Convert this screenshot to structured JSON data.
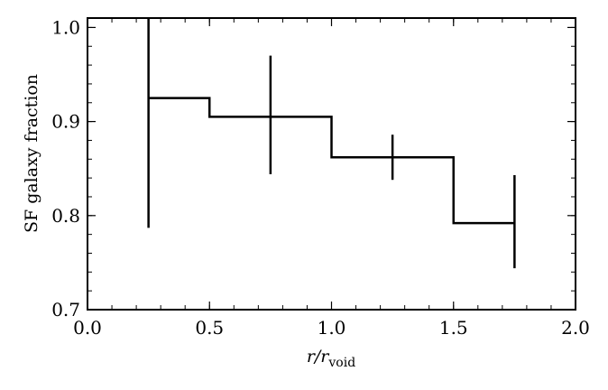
{
  "chart_data": {
    "type": "line",
    "title": "",
    "xlabel_main": "r/r",
    "xlabel_sub": "void",
    "ylabel": "SF galaxy fraction",
    "xlim": [
      0.0,
      2.0
    ],
    "ylim": [
      0.7,
      1.01
    ],
    "x_ticks": [
      "0.0",
      "0.5",
      "1.0",
      "1.5",
      "2.0"
    ],
    "y_ticks": [
      "0.7",
      "0.8",
      "0.9",
      "1.0"
    ],
    "grid": false,
    "series": [
      {
        "style": "step histogram with error bars",
        "bin_edges": [
          0.25,
          0.5,
          1.0,
          1.5,
          1.75
        ],
        "bin_values": [
          0.925,
          0.905,
          0.862,
          0.792
        ],
        "points": [
          {
            "x": 0.25,
            "y": 0.925,
            "y_lo": 0.787,
            "y_hi": 1.01
          },
          {
            "x": 0.75,
            "y": 0.905,
            "y_lo": 0.844,
            "y_hi": 0.97
          },
          {
            "x": 1.25,
            "y": 0.862,
            "y_lo": 0.838,
            "y_hi": 0.886
          },
          {
            "x": 1.75,
            "y": 0.792,
            "y_lo": 0.744,
            "y_hi": 0.843
          }
        ]
      }
    ]
  }
}
